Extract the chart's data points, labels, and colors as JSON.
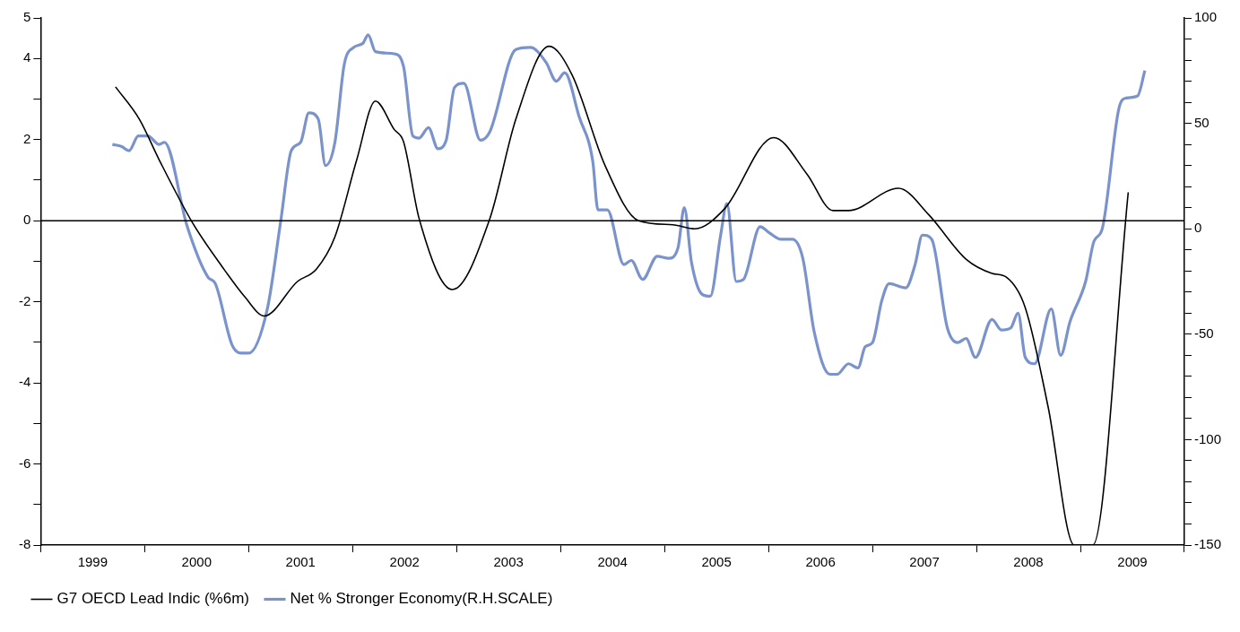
{
  "chart_data": {
    "type": "line",
    "legend": "bottom",
    "marker": "none",
    "xlim": [
      1999,
      2010
    ],
    "xticks": [
      {
        "value": 1999,
        "label": null
      },
      {
        "value": 1999.5,
        "label": "1999"
      },
      {
        "value": 2000,
        "label": null
      },
      {
        "value": 2000.5,
        "label": "2000"
      },
      {
        "value": 2001,
        "label": null
      },
      {
        "value": 2001.5,
        "label": "2001"
      },
      {
        "value": 2002,
        "label": null
      },
      {
        "value": 2002.5,
        "label": "2002"
      },
      {
        "value": 2003,
        "label": null
      },
      {
        "value": 2003.5,
        "label": "2003"
      },
      {
        "value": 2004,
        "label": null
      },
      {
        "value": 2004.5,
        "label": "2004"
      },
      {
        "value": 2005,
        "label": null
      },
      {
        "value": 2005.5,
        "label": "2005"
      },
      {
        "value": 2006,
        "label": null
      },
      {
        "value": 2006.5,
        "label": "2006"
      },
      {
        "value": 2007,
        "label": null
      },
      {
        "value": 2007.5,
        "label": "2007"
      },
      {
        "value": 2008,
        "label": null
      },
      {
        "value": 2008.5,
        "label": "2008"
      },
      {
        "value": 2009,
        "label": null
      },
      {
        "value": 2009.5,
        "label": "2009"
      },
      {
        "value": 2010,
        "label": null
      }
    ],
    "ylim": [
      -8,
      5
    ],
    "yticks": [
      -8,
      {
        "value": -7,
        "label": null
      },
      -6,
      {
        "value": -5,
        "label": null
      },
      -4,
      {
        "value": -3,
        "label": null
      },
      -2,
      {
        "value": -1,
        "label": null
      },
      0,
      {
        "value": 1,
        "label": null
      },
      2,
      {
        "value": 3,
        "label": null
      },
      4,
      5
    ],
    "y2lim": [
      -150,
      100
    ],
    "y2ticks": [
      -150,
      {
        "value": -140,
        "label": null
      },
      {
        "value": -130,
        "label": null
      },
      {
        "value": -120,
        "label": null
      },
      {
        "value": -110,
        "label": null
      },
      -100,
      {
        "value": -90,
        "label": null
      },
      {
        "value": -80,
        "label": null
      },
      {
        "value": -70,
        "label": null
      },
      {
        "value": -60,
        "label": null
      },
      -50,
      {
        "value": -40,
        "label": null
      },
      {
        "value": -30,
        "label": null
      },
      {
        "value": -20,
        "label": null
      },
      {
        "value": -10,
        "label": null
      },
      0,
      {
        "value": 10,
        "label": null
      },
      {
        "value": 20,
        "label": null
      },
      {
        "value": 30,
        "label": null
      },
      {
        "value": 40,
        "label": null
      },
      50,
      {
        "value": 60,
        "label": null
      },
      {
        "value": 70,
        "label": null
      },
      {
        "value": 80,
        "label": null
      },
      {
        "value": 90,
        "label": null
      },
      100
    ],
    "ref_lines": [
      {
        "axis": "y",
        "value": 0,
        "color": "#000000"
      }
    ],
    "series": [
      {
        "name": "G7 OECD Lead Indic (%6m)",
        "color": "#000000",
        "x": [
          1999.72,
          1999.95,
          2000.14,
          2000.46,
          2000.75,
          2000.97,
          2001.15,
          2001.47,
          2001.65,
          2001.83,
          2002.04,
          2002.22,
          2002.4,
          2002.49,
          2002.64,
          2002.96,
          2003.32,
          2003.57,
          2003.89,
          2004.11,
          2004.43,
          2004.75,
          2005.08,
          2005.29,
          2005.58,
          2006.05,
          2006.37,
          2006.62,
          2006.77,
          2007.25,
          2007.54,
          2007.9,
          2008.15,
          2008.29,
          2008.47,
          2008.69,
          2008.94,
          2009.12,
          2009.46
        ],
        "values": [
          3.3,
          2.5,
          1.5,
          -0.05,
          -1.15,
          -1.9,
          -2.35,
          -1.5,
          -1.2,
          -0.4,
          1.5,
          2.95,
          2.25,
          1.95,
          0.05,
          -1.7,
          0.05,
          2.5,
          4.3,
          3.6,
          1.35,
          0,
          -0.1,
          -0.2,
          0.3,
          2.05,
          1.15,
          0.25,
          0.25,
          0.8,
          0.15,
          -0.95,
          -1.3,
          -1.4,
          -2.15,
          -4.6,
          -8,
          -8,
          0.7
        ]
      },
      {
        "name": "Net % Stronger Economy(R.H.SCALE)",
        "color": "#7b93cc",
        "axis": "y2",
        "x": [
          1999.69,
          1999.78,
          1999.85,
          1999.94,
          2000.03,
          2000.14,
          2000.19,
          2000.41,
          2000.61,
          2000.68,
          2000.84,
          2000.93,
          2001.0,
          2001.18,
          2001.31,
          2001.41,
          2001.5,
          2001.58,
          2001.67,
          2001.74,
          2001.83,
          2001.92,
          2002.01,
          2002.1,
          2002.15,
          2002.22,
          2002.4,
          2002.49,
          2002.58,
          2002.64,
          2002.73,
          2002.82,
          2002.9,
          2002.98,
          2003.07,
          2003.23,
          2003.32,
          2003.57,
          2003.71,
          2003.86,
          2003.96,
          2004.04,
          2004.18,
          2004.31,
          2004.36,
          2004.45,
          2004.61,
          2004.68,
          2004.79,
          2004.93,
          2005.04,
          2005.13,
          2005.19,
          2005.26,
          2005.36,
          2005.44,
          2005.54,
          2005.6,
          2005.69,
          2005.76,
          2005.92,
          2006.01,
          2006.12,
          2006.23,
          2006.33,
          2006.44,
          2006.59,
          2006.66,
          2006.77,
          2006.86,
          2006.93,
          2007.0,
          2007.09,
          2007.16,
          2007.32,
          2007.41,
          2007.48,
          2007.57,
          2007.72,
          2007.82,
          2007.9,
          2007.99,
          2008.15,
          2008.24,
          2008.33,
          2008.4,
          2008.47,
          2008.56,
          2008.72,
          2008.81,
          2008.9,
          2009.05,
          2009.13,
          2009.21,
          2009.37,
          2009.44,
          2009.55,
          2009.62
        ],
        "values": [
          40,
          39,
          37,
          44,
          44,
          40,
          41,
          1,
          -23,
          -26,
          -55,
          -59,
          -59,
          -38,
          4,
          37,
          41,
          55,
          52,
          30,
          41,
          78,
          86,
          88,
          92,
          84,
          83,
          77,
          44,
          43,
          48,
          38,
          42,
          67,
          69,
          42,
          46,
          85,
          86,
          79,
          70,
          74,
          53,
          32,
          9,
          9,
          -17,
          -15,
          -24,
          -13,
          -14,
          -9,
          10,
          -16,
          -31,
          -32,
          -3,
          12,
          -25,
          -24,
          1,
          -2,
          -5,
          -5,
          -14,
          -49,
          -69,
          -69,
          -64,
          -66,
          -56,
          -54,
          -34,
          -26,
          -28,
          -17,
          -3,
          -5,
          -47,
          -54,
          -52,
          -61,
          -43,
          -48,
          -47,
          -40,
          -61,
          -64,
          -38,
          -60,
          -44,
          -25,
          -6,
          0,
          57,
          62,
          63,
          75
        ]
      }
    ]
  }
}
